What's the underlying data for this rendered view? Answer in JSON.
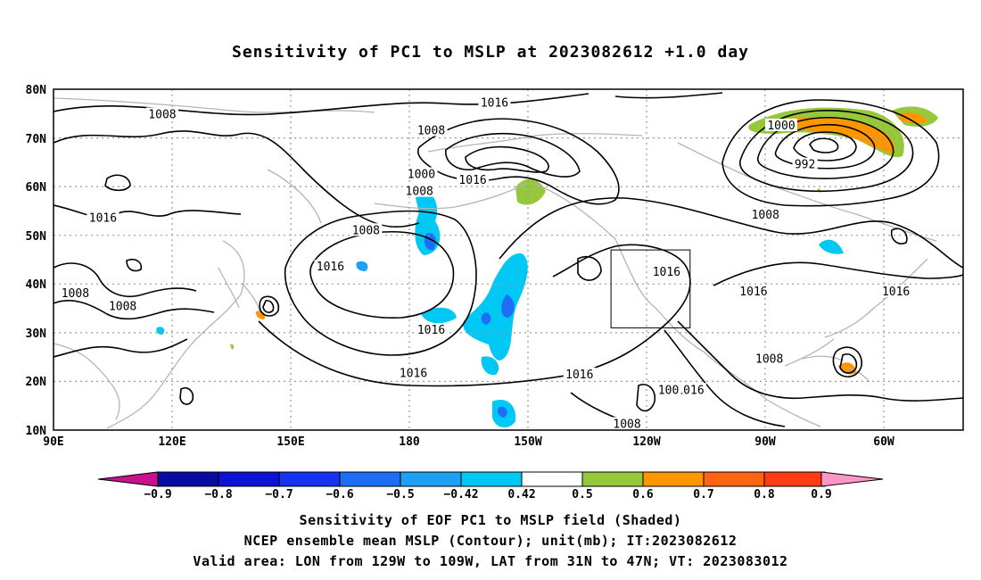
{
  "title": "Sensitivity of PC1 to MSLP at 2023082612 +1.0 day",
  "map": {
    "lat_labels": [
      "80N",
      "70N",
      "60N",
      "50N",
      "40N",
      "30N",
      "20N",
      "10N"
    ],
    "lon_labels": [
      "90E",
      "120E",
      "150E",
      "180",
      "150W",
      "120W",
      "90W",
      "60W"
    ],
    "contour_labels": [
      {
        "text": "1016",
        "lon": -158.5,
        "lat": 77.2
      },
      {
        "text": "1008",
        "lon": 117.5,
        "lat": 74.8
      },
      {
        "text": "1008",
        "lon": -174.5,
        "lat": 71.5
      },
      {
        "text": "1000",
        "lon": -177,
        "lat": 62.5
      },
      {
        "text": "1008",
        "lon": -177.5,
        "lat": 59
      },
      {
        "text": "1016",
        "lon": -164,
        "lat": 61.3
      },
      {
        "text": "1000",
        "lon": -86,
        "lat": 72.5
      },
      {
        "text": "992",
        "lon": -80,
        "lat": 64.5
      },
      {
        "text": "1008",
        "lon": -90,
        "lat": 54.2
      },
      {
        "text": "1016",
        "lon": 102.5,
        "lat": 53.5
      },
      {
        "text": "1008",
        "lon": 169,
        "lat": 51
      },
      {
        "text": "1016",
        "lon": 160,
        "lat": 43.5
      },
      {
        "text": "1016",
        "lon": -115,
        "lat": 42.4
      },
      {
        "text": "1016",
        "lon": -93,
        "lat": 38.4
      },
      {
        "text": "1016",
        "lon": -57,
        "lat": 38.4
      },
      {
        "text": "1008",
        "lon": 95.5,
        "lat": 38
      },
      {
        "text": "1008",
        "lon": 107.5,
        "lat": 35.4
      },
      {
        "text": "1016",
        "lon": -174.5,
        "lat": 30.5
      },
      {
        "text": "1008",
        "lon": -89,
        "lat": 24.6
      },
      {
        "text": "1016",
        "lon": -179,
        "lat": 21.6
      },
      {
        "text": "1016",
        "lon": -137,
        "lat": 21.4
      },
      {
        "text": "1016",
        "lon": -109,
        "lat": 18.2
      },
      {
        "text": "1008",
        "lon": -125,
        "lat": 11.2
      },
      {
        "text": "100",
        "lon": -114.5,
        "lat": 18.2
      }
    ],
    "valid_box": {
      "lon_from": -129,
      "lon_to": -109,
      "lat_from": 31,
      "lat_to": 47
    }
  },
  "colorbar": {
    "labels": [
      "−0.9",
      "−0.8",
      "−0.7",
      "−0.6",
      "−0.5",
      "−0.42",
      "0.42",
      "0.5",
      "0.6",
      "0.7",
      "0.8",
      "0.9"
    ],
    "colors": {
      "below_min": "#c8128c",
      "bins": [
        "#0a0aa0",
        "#0a14d2",
        "#1432f0",
        "#1e6ef5",
        "#1ea0f5",
        "#00c8f5",
        "#ffffff",
        "#96c83c",
        "#ff9600",
        "#ff6414",
        "#ff3c14",
        "#ff0000"
      ],
      "above_max": "#ff96c8"
    }
  },
  "colors": {
    "land": "#b4b4b4",
    "contour": "#000000",
    "grid": "#9a9a9a"
  },
  "captions": [
    "Sensitivity of EOF PC1 to MSLP field (Shaded)",
    "NCEP ensemble mean MSLP (Contour); unit(mb); IT:2023082612",
    "Valid area: LON from 129W to 109W, LAT from 31N to 47N; VT: 2023083012"
  ]
}
